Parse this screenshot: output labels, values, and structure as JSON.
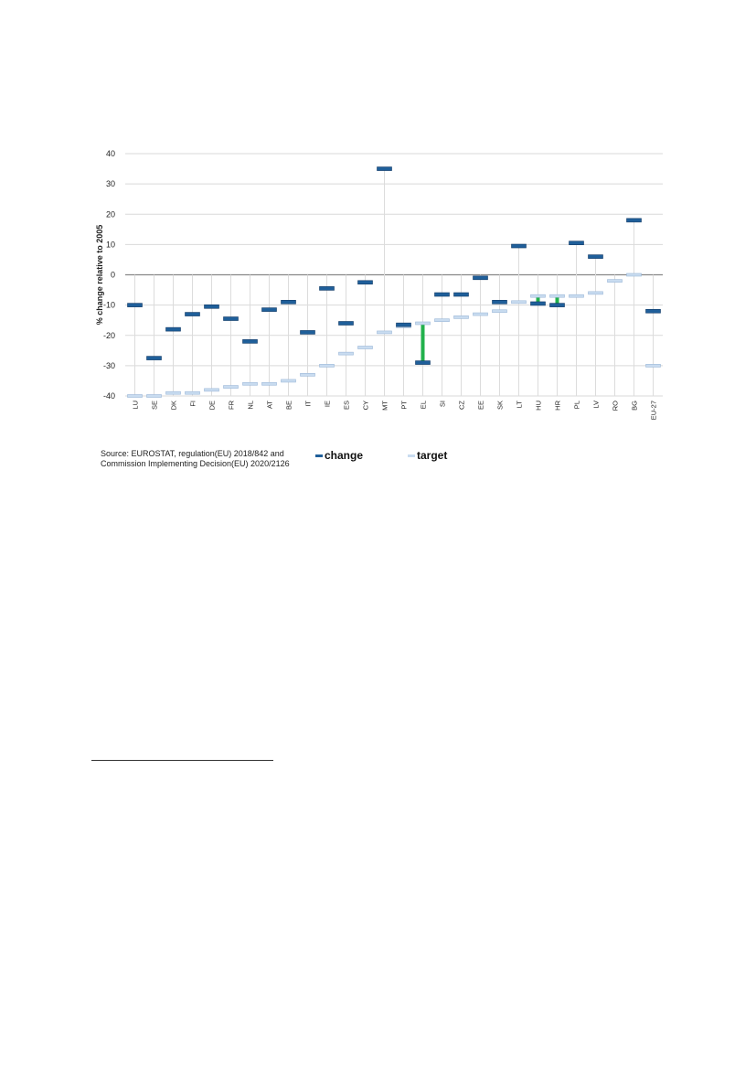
{
  "chart_data": {
    "type": "range-markers",
    "ylabel": "% change relative to 2005",
    "ylim": [
      -40,
      40
    ],
    "yticks": [
      -40,
      -30,
      -20,
      -10,
      0,
      10,
      20,
      30,
      40
    ],
    "grid": true,
    "legend_position": "bottom",
    "categories": [
      "LU",
      "SE",
      "DK",
      "FI",
      "DE",
      "FR",
      "NL",
      "AT",
      "BE",
      "IT",
      "IE",
      "ES",
      "CY",
      "MT",
      "PT",
      "EL",
      "SI",
      "CZ",
      "EE",
      "SK",
      "LT",
      "HU",
      "HR",
      "PL",
      "LV",
      "RO",
      "BG",
      "EU-27"
    ],
    "series": [
      {
        "name": "change",
        "color": "#1f5f9a",
        "values": [
          -10,
          -27.5,
          -18,
          -13,
          -10.5,
          -14.5,
          -22,
          -11.5,
          -9,
          -19,
          -4.5,
          -16,
          -2.5,
          35,
          -16.5,
          -29,
          -6.5,
          -6.5,
          -1,
          -9,
          9.5,
          -9.5,
          -10,
          10.5,
          6,
          null,
          18,
          -12
        ]
      },
      {
        "name": "target",
        "color": "#c9dcf0",
        "values": [
          -40,
          -40,
          -39,
          -39,
          -38,
          -37,
          -36,
          -36,
          -35,
          -33,
          -30,
          -26,
          -24,
          -19,
          -17,
          -16,
          -15,
          -14,
          -13,
          -12,
          -9,
          -7,
          -7,
          -7,
          -6,
          -2,
          0,
          -30
        ]
      }
    ],
    "gap_highlight": {
      "color": "#22b14c",
      "categories": [
        "EL",
        "HU",
        "HR"
      ]
    }
  },
  "source": {
    "line1": "Source: EUROSTAT,  regulation(EU) 2018/842 and",
    "line2": "Commission Implementing  Decision(EU) 2020/2126"
  },
  "legend": {
    "change_label": "change",
    "target_label": "target"
  }
}
